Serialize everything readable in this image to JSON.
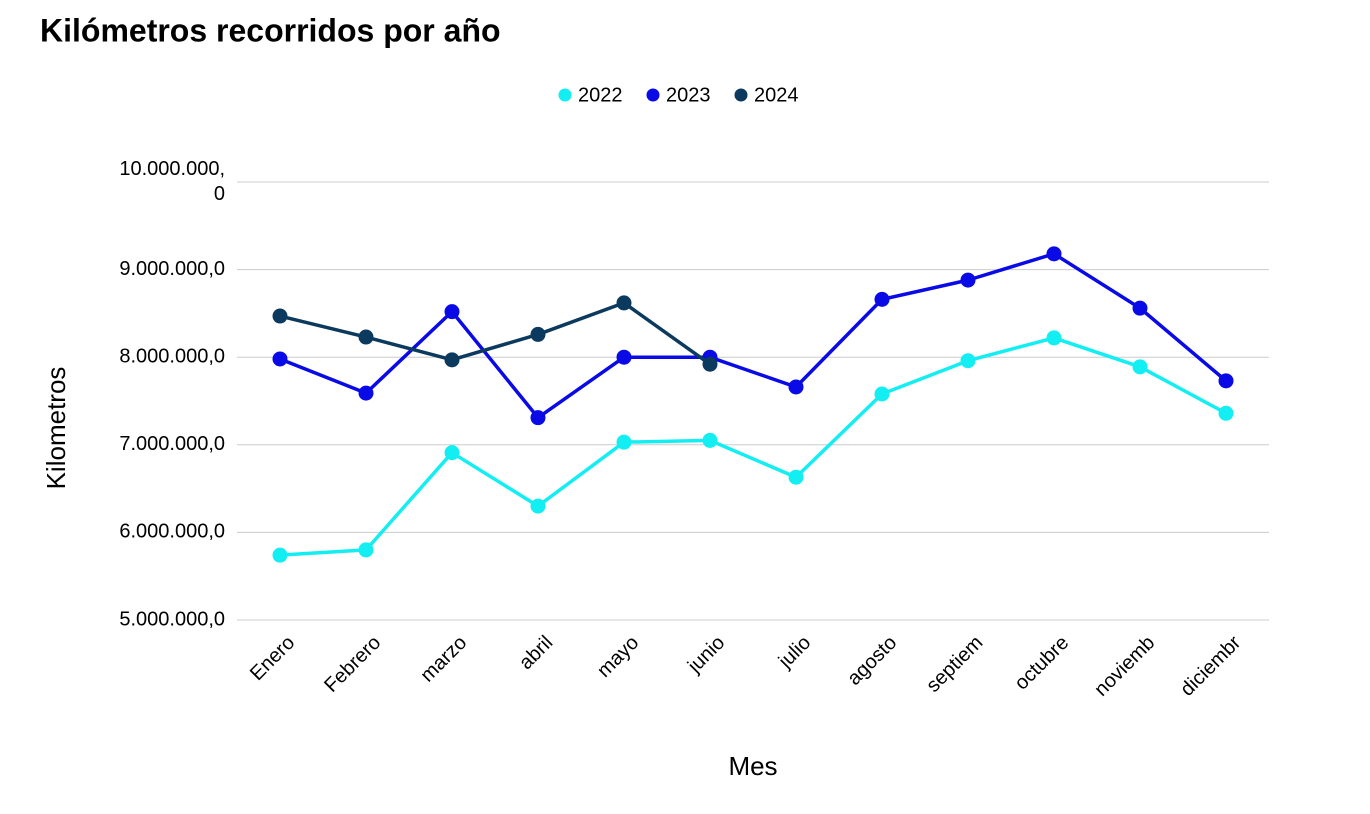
{
  "chart_data": {
    "type": "line",
    "title": "Kilómetros recorridos por año",
    "x_label": "Mes",
    "y_label": "Kilometros",
    "categories": [
      "Enero",
      "Febrero",
      "marzo",
      "abril",
      "mayo",
      "junio",
      "julio",
      "agosto",
      "septiem",
      "octubre",
      "noviemb",
      "diciembr"
    ],
    "series": [
      {
        "name": "2022",
        "color": "#12eef2",
        "values": [
          5740000,
          5800000,
          6910000,
          6300000,
          7030000,
          7050000,
          6630000,
          7580000,
          7960000,
          8220000,
          7890000,
          7360000
        ]
      },
      {
        "name": "2023",
        "color": "#0a0ae6",
        "values": [
          7980000,
          7590000,
          8520000,
          7310000,
          8000000,
          8000000,
          7660000,
          8660000,
          8880000,
          9180000,
          8560000,
          7730000
        ]
      },
      {
        "name": "2024",
        "color": "#0c3a5e",
        "values": [
          8470000,
          8230000,
          7970000,
          8260000,
          8620000,
          7920000,
          null,
          null,
          null,
          null,
          null,
          null
        ]
      }
    ],
    "ylim": [
      5000000,
      10000000
    ],
    "yticks": [
      {
        "value": 5000000,
        "label": "5.000.000,0"
      },
      {
        "value": 6000000,
        "label": "6.000.000,0"
      },
      {
        "value": 7000000,
        "label": "7.000.000,0"
      },
      {
        "value": 8000000,
        "label": "8.000.000,0"
      },
      {
        "value": 9000000,
        "label": "9.000.000,0"
      },
      {
        "value": 10000000,
        "label": "10.000.000,0"
      }
    ],
    "grid": true,
    "legend": "top"
  }
}
